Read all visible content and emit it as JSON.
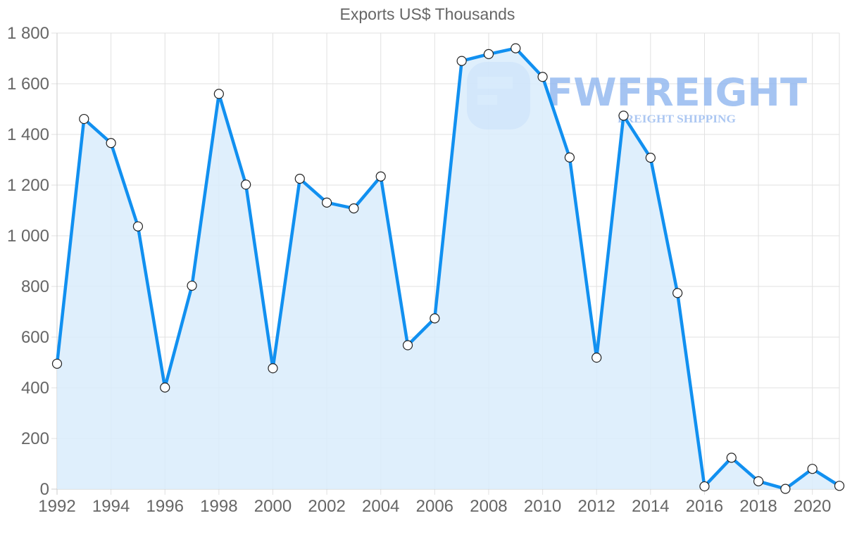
{
  "chart_data": {
    "type": "line",
    "title": "Exports US$ Thousands",
    "xlabel": "",
    "ylabel": "",
    "x": [
      1992,
      1993,
      1994,
      1995,
      1996,
      1997,
      1998,
      1999,
      2000,
      2001,
      2002,
      2003,
      2004,
      2005,
      2006,
      2007,
      2008,
      2009,
      2010,
      2011,
      2012,
      2013,
      2014,
      2015,
      2016,
      2017,
      2018,
      2019,
      2020,
      2021
    ],
    "series": [
      {
        "name": "Exports US$ Thousands",
        "values": [
          495,
          1461,
          1366,
          1037,
          401,
          803,
          1560,
          1202,
          477,
          1225,
          1131,
          1108,
          1234,
          568,
          674,
          1690,
          1717,
          1740,
          1627,
          1309,
          519,
          1474,
          1308,
          774,
          11,
          124,
          31,
          1,
          80,
          13
        ],
        "color": "#1190f0",
        "fill": "#d9ecfc"
      }
    ],
    "ylim": [
      0,
      1800
    ],
    "yticks": [
      0,
      200,
      400,
      600,
      800,
      1000,
      1200,
      1400,
      1600,
      1800
    ],
    "ytick_labels": [
      "0",
      "200",
      "400",
      "600",
      "800",
      "1 000",
      "1 200",
      "1 400",
      "1 600",
      "1 800"
    ],
    "xticks": [
      1992,
      1994,
      1996,
      1998,
      2000,
      2002,
      2004,
      2006,
      2008,
      2010,
      2012,
      2014,
      2016,
      2018,
      2020
    ],
    "xtick_labels": [
      "1992",
      "1994",
      "1996",
      "1998",
      "2000",
      "2002",
      "2004",
      "2006",
      "2008",
      "2010",
      "2012",
      "2014",
      "2016",
      "2018",
      "2020"
    ],
    "grid": true,
    "legend": "none",
    "area_fill": true
  },
  "watermark": {
    "brand": "FWFREIGHT",
    "tagline": "FREIGHT SHIPPING"
  }
}
